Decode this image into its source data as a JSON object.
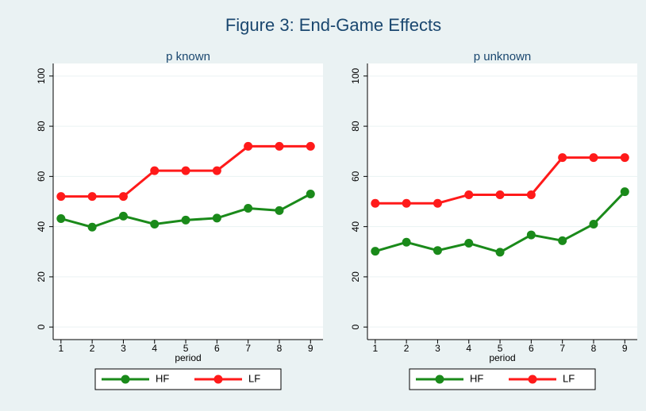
{
  "title": "Figure 3: End-Game Effects",
  "chart_data": [
    {
      "type": "line",
      "title": "p known",
      "xlabel": "period",
      "x": [
        1,
        2,
        3,
        4,
        5,
        6,
        7,
        8,
        9
      ],
      "series": [
        {
          "name": "HF",
          "color": "#1a8a1a",
          "values": [
            43.2,
            39.8,
            44.2,
            41,
            42.6,
            43.4,
            47.3,
            46.4,
            53
          ]
        },
        {
          "name": "LF",
          "color": "#ff1a1a",
          "values": [
            52,
            52,
            52,
            62.3,
            62.3,
            62.3,
            72,
            72,
            72
          ]
        }
      ],
      "xlim": [
        0.75,
        9.4
      ],
      "xticks": [
        1,
        2,
        3,
        4,
        5,
        6,
        7,
        8,
        9
      ],
      "ylim": [
        -5,
        105
      ],
      "yticks": [
        0,
        20,
        40,
        60,
        80,
        100
      ],
      "grid": true,
      "legend": "bottom"
    },
    {
      "type": "line",
      "title": "p unknown",
      "xlabel": "period",
      "x": [
        1,
        2,
        3,
        4,
        5,
        6,
        7,
        8,
        9
      ],
      "series": [
        {
          "name": "HF",
          "color": "#1a8a1a",
          "values": [
            30.2,
            33.8,
            30.5,
            33.4,
            29.8,
            36.7,
            34.4,
            41,
            53.9
          ]
        },
        {
          "name": "LF",
          "color": "#ff1a1a",
          "values": [
            49.3,
            49.3,
            49.3,
            52.7,
            52.7,
            52.7,
            67.5,
            67.5,
            67.5
          ]
        }
      ],
      "xlim": [
        0.75,
        9.4
      ],
      "xticks": [
        1,
        2,
        3,
        4,
        5,
        6,
        7,
        8,
        9
      ],
      "ylim": [
        -5,
        105
      ],
      "yticks": [
        0,
        20,
        40,
        60,
        80,
        100
      ],
      "grid": true,
      "legend": "bottom"
    }
  ]
}
